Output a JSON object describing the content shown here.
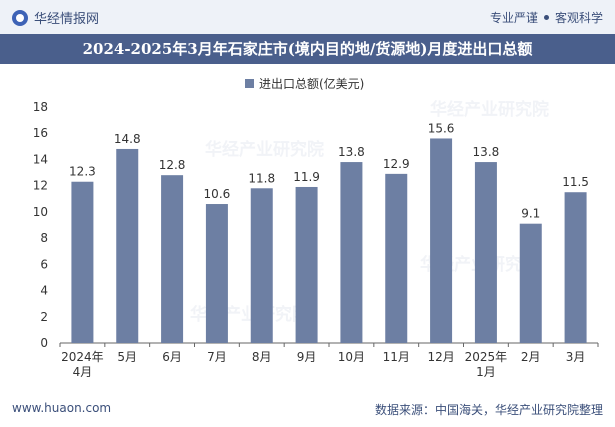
{
  "header": {
    "brand": "华经情报网",
    "tagline_left": "专业严谨",
    "tagline_right": "客观科学"
  },
  "chart_data": {
    "type": "bar",
    "title": "2024-2025年3月年石家庄市(境内目的地/货源地)月度进出口总额",
    "categories": [
      "2024年\n4月",
      "5月",
      "6月",
      "7月",
      "8月",
      "9月",
      "10月",
      "11月",
      "12月",
      "2025年\n1月",
      "2月",
      "3月"
    ],
    "series": [
      {
        "name": "进出口总额(亿美元)",
        "values": [
          12.3,
          14.8,
          12.8,
          10.6,
          11.8,
          11.9,
          13.8,
          12.9,
          15.6,
          13.8,
          9.1,
          11.5
        ]
      }
    ],
    "ylim": [
      0,
      18
    ],
    "yticks": [
      0,
      2,
      4,
      6,
      8,
      10,
      12,
      14,
      16,
      18
    ],
    "grid": false,
    "legend": "top-center",
    "bar_color": "#6d7fa3"
  },
  "footer": {
    "website": "www.huaon.com",
    "source": "数据来源：中国海关，华经产业研究院整理"
  },
  "watermark": "华经产业研究院"
}
